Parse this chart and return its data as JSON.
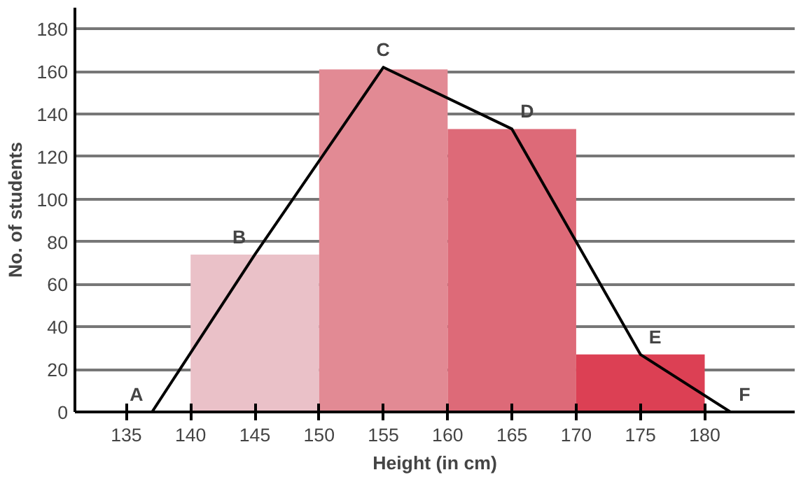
{
  "chart_data": {
    "type": "histogram",
    "xlabel": "Height (in cm)",
    "ylabel": "No. of students",
    "bins": [
      140,
      150,
      160,
      170,
      180
    ],
    "values": [
      74,
      161,
      133,
      27
    ],
    "colors": [
      "#eac1c8",
      "#e28a94",
      "#dd6a78",
      "#dc4054"
    ],
    "series": [
      {
        "type": "line",
        "x": [
          137,
          145,
          155,
          165,
          175,
          182
        ],
        "values": [
          0,
          74,
          162,
          133,
          27,
          0
        ],
        "color": "#000000"
      }
    ],
    "annotations": [
      {
        "text": "A",
        "x": 137,
        "y": 0
      },
      {
        "text": "B",
        "x": 145,
        "y": 74
      },
      {
        "text": "C",
        "x": 155,
        "y": 162
      },
      {
        "text": "D",
        "x": 165,
        "y": 133
      },
      {
        "text": "E",
        "x": 175,
        "y": 27
      },
      {
        "text": "F",
        "x": 182,
        "y": 0
      }
    ],
    "xlim": [
      131,
      187
    ],
    "xticks": [
      135,
      140,
      145,
      150,
      155,
      160,
      165,
      170,
      175,
      180
    ],
    "ylim": [
      0,
      190
    ],
    "yticks": [
      0,
      20,
      40,
      60,
      80,
      100,
      120,
      140,
      160,
      180
    ],
    "grid": "y"
  }
}
